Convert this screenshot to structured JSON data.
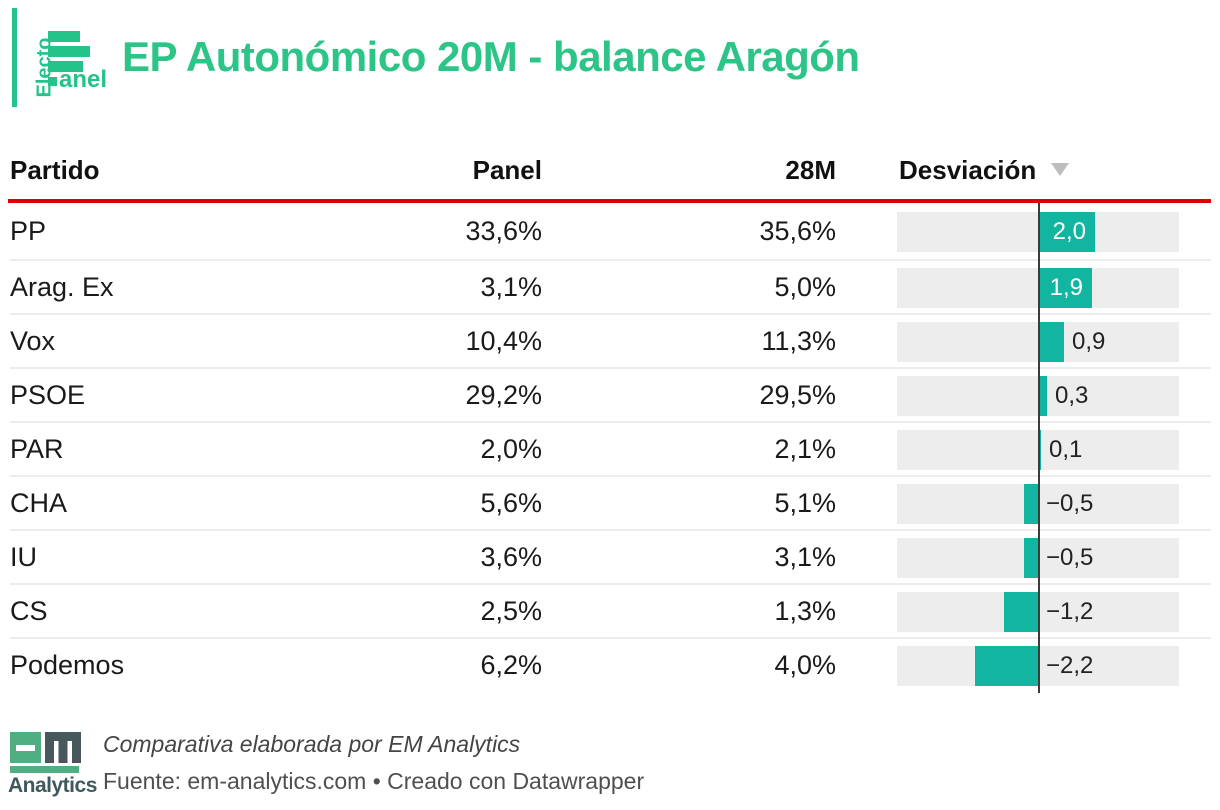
{
  "brand": {
    "logo_vertical_text": "Electo",
    "logo_suffix_text": "anel",
    "title": "EP Autonómico 20M - balance Aragón"
  },
  "colors": {
    "brand_green": "#24C389",
    "title_green": "#2CC487",
    "bar_teal": "#12B5A0",
    "header_rule_red": "#E00000",
    "bar_cell_gray": "#EDEDED",
    "axis_dark": "#3C3C3C",
    "sort_icon_gray": "#BDBDBD",
    "footer_logo_green": "#4FAE82",
    "footer_logo_slate": "#3E585C"
  },
  "table": {
    "columns": {
      "partido": "Partido",
      "panel": "Panel",
      "m28": "28M",
      "desviacion": "Desviación"
    },
    "sort_icon": "triangle-down",
    "rows": [
      {
        "partido": "PP",
        "panel": "33,6%",
        "m28": "35,6%",
        "desviacion": 2.0,
        "desviacion_label": "2,0"
      },
      {
        "partido": "Arag. Ex",
        "panel": "3,1%",
        "m28": "5,0%",
        "desviacion": 1.9,
        "desviacion_label": "1,9"
      },
      {
        "partido": "Vox",
        "panel": "10,4%",
        "m28": "11,3%",
        "desviacion": 0.9,
        "desviacion_label": "0,9"
      },
      {
        "partido": "PSOE",
        "panel": "29,2%",
        "m28": "29,5%",
        "desviacion": 0.3,
        "desviacion_label": "0,3"
      },
      {
        "partido": "PAR",
        "panel": "2,0%",
        "m28": "2,1%",
        "desviacion": 0.1,
        "desviacion_label": "0,1"
      },
      {
        "partido": "CHA",
        "panel": "5,6%",
        "m28": "5,1%",
        "desviacion": -0.5,
        "desviacion_label": "−0,5"
      },
      {
        "partido": "IU",
        "panel": "3,6%",
        "m28": "3,1%",
        "desviacion": -0.5,
        "desviacion_label": "−0,5"
      },
      {
        "partido": "CS",
        "panel": "2,5%",
        "m28": "1,3%",
        "desviacion": -1.2,
        "desviacion_label": "−1,2"
      },
      {
        "partido": "Podemos",
        "panel": "6,2%",
        "m28": "4,0%",
        "desviacion": -2.2,
        "desviacion_label": "−2,2"
      }
    ]
  },
  "footer": {
    "logo_text": "Analytics",
    "byline": "Comparativa elaborada por EM Analytics",
    "source": "Fuente: em-analytics.com • Creado con Datawrapper"
  },
  "chart_data": {
    "type": "table",
    "title": "EP Autonómico 20M - balance Aragón",
    "columns": [
      "Partido",
      "Panel",
      "28M",
      "Desviación"
    ],
    "rows": [
      [
        "PP",
        33.6,
        35.6,
        2.0
      ],
      [
        "Arag. Ex",
        3.1,
        5.0,
        1.9
      ],
      [
        "Vox",
        10.4,
        11.3,
        0.9
      ],
      [
        "PSOE",
        29.2,
        29.5,
        0.3
      ],
      [
        "PAR",
        2.0,
        2.1,
        0.1
      ],
      [
        "CHA",
        5.6,
        5.1,
        -0.5
      ],
      [
        "IU",
        3.6,
        3.1,
        -0.5
      ],
      [
        "CS",
        2.5,
        1.3,
        -1.2
      ],
      [
        "Podemos",
        6.2,
        4.0,
        -2.2
      ]
    ],
    "bar_column": "Desviación",
    "bar_axis": "diverging bars centered at 0, positive right / negative left",
    "sorted_by": "Desviación descending",
    "units": "percentage points"
  }
}
